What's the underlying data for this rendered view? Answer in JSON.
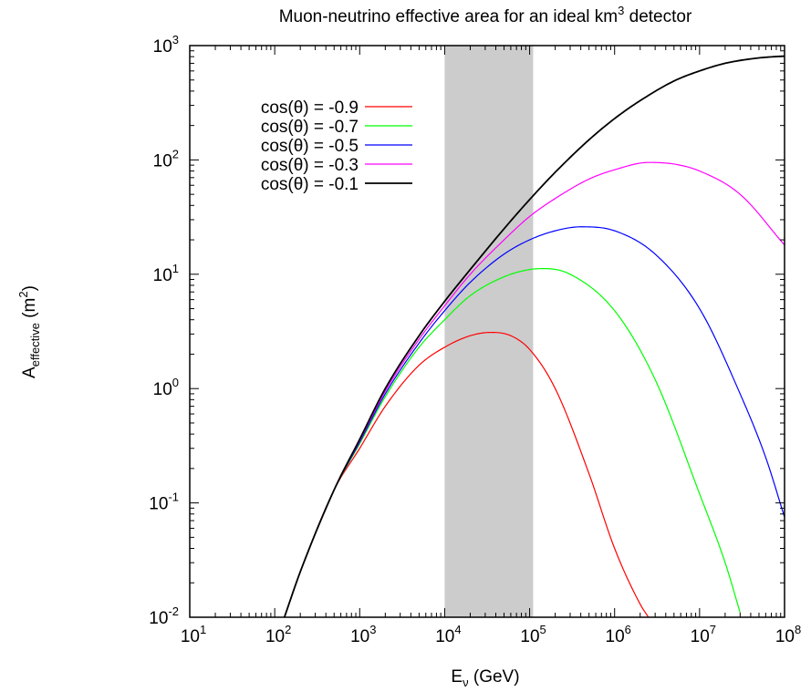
{
  "chart_data": {
    "type": "line",
    "title": {
      "text": "Muon-neutrino effective area for an ideal km",
      "sup": "3",
      "after": " detector"
    },
    "xlabel": {
      "main": "E",
      "sub": "ν",
      "after": " (GeV)"
    },
    "ylabel": {
      "main": "A",
      "sub": "effective",
      "mid": " (m",
      "sup": "2",
      "after": ")"
    },
    "x_scale": "log",
    "y_scale": "log",
    "xlim": [
      10,
      100000000
    ],
    "ylim": [
      0.01,
      1000
    ],
    "x_ticks": [
      {
        "base": "10",
        "exp": "1"
      },
      {
        "base": "10",
        "exp": "2"
      },
      {
        "base": "10",
        "exp": "3"
      },
      {
        "base": "10",
        "exp": "4"
      },
      {
        "base": "10",
        "exp": "5"
      },
      {
        "base": "10",
        "exp": "6"
      },
      {
        "base": "10",
        "exp": "7"
      },
      {
        "base": "10",
        "exp": "8"
      }
    ],
    "y_ticks": [
      {
        "base": "10",
        "exp": "-2"
      },
      {
        "base": "10",
        "exp": "-1"
      },
      {
        "base": "10",
        "exp": "0"
      },
      {
        "base": "10",
        "exp": "1"
      },
      {
        "base": "10",
        "exp": "2"
      },
      {
        "base": "10",
        "exp": "3"
      }
    ],
    "shaded_band": {
      "x_range": [
        10000,
        110000
      ],
      "color": "#cccccc"
    },
    "legend_position": "top-left",
    "grid": false,
    "series": [
      {
        "name": "cos(θ) = -0.9",
        "color": "#ff0000",
        "x": [
          130,
          200,
          500,
          1000,
          2000,
          5000,
          10000,
          20000,
          35000,
          60000,
          100000,
          200000,
          500000,
          1000000,
          2000000,
          2500000
        ],
        "y": [
          0.01,
          0.025,
          0.13,
          0.3,
          0.7,
          1.6,
          2.3,
          2.9,
          3.1,
          2.9,
          2.2,
          1.0,
          0.18,
          0.04,
          0.013,
          0.01
        ]
      },
      {
        "name": "cos(θ) = -0.7",
        "color": "#00ff00",
        "x": [
          130,
          200,
          500,
          1000,
          2000,
          5000,
          10000,
          20000,
          50000,
          100000,
          150000,
          300000,
          1000000,
          3000000,
          10000000,
          20000000,
          30000000
        ],
        "y": [
          0.01,
          0.025,
          0.13,
          0.33,
          0.85,
          2.3,
          4.0,
          6.5,
          9.5,
          11.0,
          11.2,
          10.0,
          4.8,
          1.2,
          0.12,
          0.03,
          0.011
        ]
      },
      {
        "name": "cos(θ) = -0.5",
        "color": "#0000ff",
        "x": [
          130,
          200,
          500,
          1000,
          2000,
          5000,
          10000,
          20000,
          50000,
          100000,
          200000,
          400000,
          1000000,
          3000000,
          10000000,
          30000000,
          60000000,
          100000000
        ],
        "y": [
          0.01,
          0.025,
          0.13,
          0.34,
          0.9,
          2.5,
          4.8,
          8.5,
          15.0,
          20.0,
          24.0,
          26.0,
          24.0,
          15.0,
          5.0,
          0.9,
          0.25,
          0.075
        ]
      },
      {
        "name": "cos(θ) = -0.3",
        "color": "#ff00ff",
        "x": [
          130,
          200,
          500,
          1000,
          2000,
          5000,
          10000,
          20000,
          50000,
          100000,
          200000,
          500000,
          1000000,
          2500000,
          5000000,
          10000000,
          30000000,
          100000000
        ],
        "y": [
          0.01,
          0.025,
          0.13,
          0.35,
          0.95,
          2.7,
          5.3,
          10.0,
          20.0,
          32.0,
          46.0,
          68.0,
          82.0,
          95.0,
          92.0,
          80.0,
          50.0,
          18.0
        ]
      },
      {
        "name": "cos(θ) = -0.1",
        "color": "#000000",
        "x": [
          130,
          200,
          500,
          1000,
          2000,
          5000,
          10000,
          20000,
          50000,
          100000,
          200000,
          500000,
          1000000,
          2000000,
          5000000,
          10000000,
          20000000,
          50000000,
          100000000
        ],
        "y": [
          0.01,
          0.025,
          0.13,
          0.36,
          1.0,
          2.9,
          5.8,
          11.0,
          25.0,
          45.0,
          78.0,
          150.0,
          230.0,
          330.0,
          490.0,
          600.0,
          700.0,
          780.0,
          810.0
        ]
      }
    ]
  }
}
